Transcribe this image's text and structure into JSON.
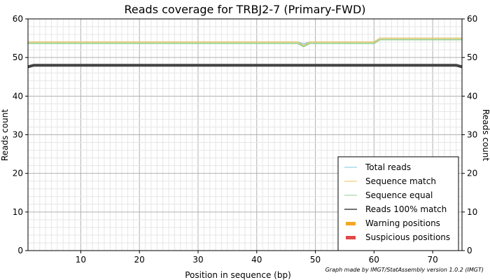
{
  "chart_data": {
    "type": "line",
    "title": "Reads coverage for TRBJ2-7 (Primary-FWD)",
    "xlabel": "Position in sequence (bp)",
    "ylabel": "Reads count",
    "ylabel_right": "Reads count",
    "xlim": [
      1,
      75
    ],
    "ylim": [
      0,
      60
    ],
    "x_ticks": [
      10,
      20,
      30,
      40,
      50,
      60,
      70
    ],
    "y_ticks": [
      0,
      10,
      20,
      30,
      40,
      50,
      60
    ],
    "grid": true,
    "legend_position": "bottom-right",
    "credit": "Graph made by IMGT/StatAssembly version 1.0.2 (IMGT)",
    "series": [
      {
        "name": "Total reads",
        "color": "#7ec8e3",
        "width": 1.5,
        "style": "line",
        "points": [
          [
            1,
            54
          ],
          [
            47,
            54
          ],
          [
            48,
            53.5
          ],
          [
            49,
            54
          ],
          [
            60,
            54
          ],
          [
            61,
            55
          ],
          [
            75,
            55
          ]
        ]
      },
      {
        "name": "Sequence match",
        "color": "#e8c25a",
        "width": 1.5,
        "style": "line",
        "points": [
          [
            1,
            54
          ],
          [
            47,
            54
          ],
          [
            48,
            53
          ],
          [
            49,
            54
          ],
          [
            60,
            54
          ],
          [
            61,
            55
          ],
          [
            75,
            55
          ]
        ]
      },
      {
        "name": "Sequence equal",
        "color": "#8fd18f",
        "width": 1.5,
        "style": "line",
        "points": [
          [
            1,
            53.6
          ],
          [
            47,
            53.6
          ],
          [
            48,
            52.8
          ],
          [
            49,
            53.6
          ],
          [
            60,
            53.6
          ],
          [
            61,
            54.6
          ],
          [
            75,
            54.6
          ]
        ]
      },
      {
        "name": "Reads 100% match",
        "color": "#444444",
        "width": 4,
        "style": "line",
        "points": [
          [
            1,
            47.6
          ],
          [
            2,
            48
          ],
          [
            74,
            48
          ],
          [
            75,
            47.6
          ]
        ]
      },
      {
        "name": "Warning positions",
        "color": "#f5a623",
        "style": "box",
        "points": []
      },
      {
        "name": "Suspicious positions",
        "color": "#e04848",
        "style": "box",
        "points": []
      }
    ]
  }
}
